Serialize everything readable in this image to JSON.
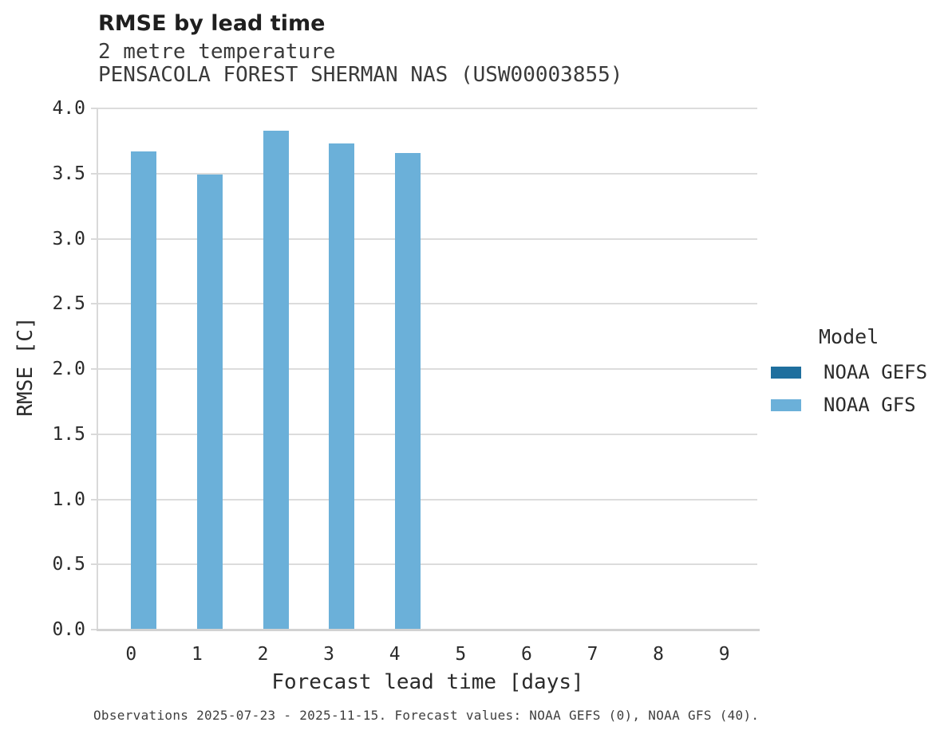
{
  "header": {
    "title": "RMSE by lead time"
  },
  "chart_data": {
    "type": "bar",
    "title": "RMSE by lead time",
    "subtitle_line1": "2 metre temperature",
    "subtitle_line2": "PENSACOLA FOREST SHERMAN NAS (USW00003855)",
    "xlabel": "Forecast lead time [days]",
    "ylabel": "RMSE [C]",
    "categories": [
      "0",
      "1",
      "2",
      "3",
      "4",
      "5",
      "6",
      "7",
      "8",
      "9"
    ],
    "series": [
      {
        "name": "NOAA GEFS",
        "color": "#1f6f9e",
        "values": [
          null,
          null,
          null,
          null,
          null,
          null,
          null,
          null,
          null,
          null
        ]
      },
      {
        "name": "NOAA GFS",
        "color": "#6bb0d9",
        "values": [
          3.67,
          3.49,
          3.83,
          3.73,
          3.66,
          null,
          null,
          null,
          null,
          null
        ]
      }
    ],
    "ylim": [
      0,
      4.0
    ],
    "ytick_step": 0.5,
    "grid": "horizontal",
    "legend_title": "Model",
    "legend_position": "right"
  },
  "footer": {
    "caption": "Observations 2025-07-23 - 2025-11-15. Forecast values: NOAA GEFS (0), NOAA GFS (40)."
  },
  "colors": {
    "grid": "#dcdcdc",
    "axis": "#d2d2d2",
    "text": "#2b2b2b",
    "bar_gefs": "#1f6f9e",
    "bar_gfs": "#6bb0d9"
  }
}
